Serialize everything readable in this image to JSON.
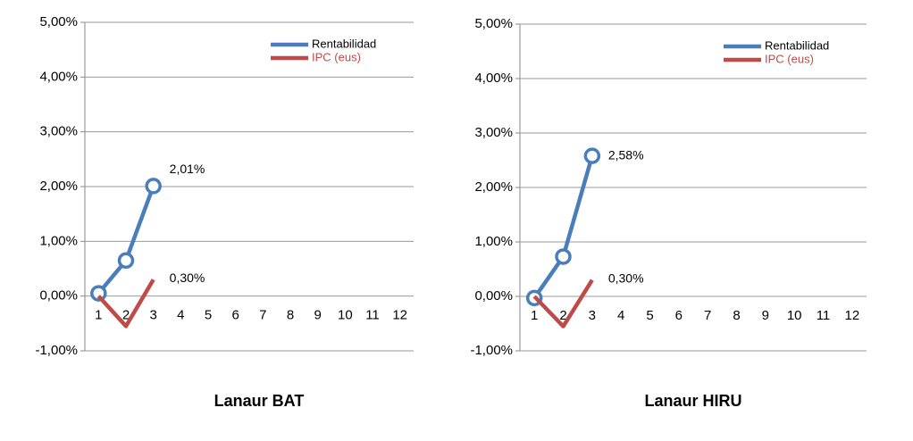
{
  "chart_data": [
    {
      "type": "line",
      "title": "Lanaur BAT",
      "categories": [
        "1",
        "2",
        "3",
        "4",
        "5",
        "6",
        "7",
        "8",
        "9",
        "10",
        "11",
        "12"
      ],
      "series": [
        {
          "name": "Rentabilidad",
          "color": "#4a7ebb",
          "values": [
            0.05,
            0.65,
            2.01,
            null,
            null,
            null,
            null,
            null,
            null,
            null,
            null,
            null
          ],
          "value_labels": [
            null,
            null,
            "2,01%",
            null,
            null,
            null,
            null,
            null,
            null,
            null,
            null,
            null
          ]
        },
        {
          "name": "IPC (eus)",
          "color": "#be4b48",
          "values": [
            0,
            -0.55,
            0.3,
            null,
            null,
            null,
            null,
            null,
            null,
            null,
            null,
            null
          ],
          "value_labels": [
            null,
            null,
            "0,30%",
            null,
            null,
            null,
            null,
            null,
            null,
            null,
            null,
            null
          ]
        }
      ],
      "ylim": [
        -1,
        5
      ],
      "yticks": [
        {
          "value": -1,
          "label": "-1,00%"
        },
        {
          "value": 0,
          "label": "0,00%"
        },
        {
          "value": 1,
          "label": "1,00%"
        },
        {
          "value": 2,
          "label": "2,00%"
        },
        {
          "value": 3,
          "label": "3,00%"
        },
        {
          "value": 4,
          "label": "4,00%"
        },
        {
          "value": 5,
          "label": "5,00%"
        }
      ],
      "grid": true,
      "legend": "upper right"
    },
    {
      "type": "line",
      "title": "Lanaur HIRU",
      "categories": [
        "1",
        "2",
        "3",
        "4",
        "5",
        "6",
        "7",
        "8",
        "9",
        "10",
        "11",
        "12"
      ],
      "series": [
        {
          "name": "Rentabilidad",
          "color": "#4a7ebb",
          "values": [
            -0.03,
            0.73,
            2.58,
            null,
            null,
            null,
            null,
            null,
            null,
            null,
            null,
            null
          ],
          "value_labels": [
            null,
            null,
            "2,58%",
            null,
            null,
            null,
            null,
            null,
            null,
            null,
            null,
            null
          ]
        },
        {
          "name": "IPC (eus)",
          "color": "#be4b48",
          "values": [
            0,
            -0.55,
            0.3,
            null,
            null,
            null,
            null,
            null,
            null,
            null,
            null,
            null
          ],
          "value_labels": [
            null,
            null,
            "0,30%",
            null,
            null,
            null,
            null,
            null,
            null,
            null,
            null,
            null
          ]
        }
      ],
      "ylim": [
        -1,
        5
      ],
      "yticks": [
        {
          "value": -1,
          "label": "-1,00%"
        },
        {
          "value": 0,
          "label": "0,00%"
        },
        {
          "value": 1,
          "label": "1,00%"
        },
        {
          "value": 2,
          "label": "2,00%"
        },
        {
          "value": 3,
          "label": "3,00%"
        },
        {
          "value": 4,
          "label": "4,00%"
        },
        {
          "value": 5,
          "label": "5,00%"
        }
      ],
      "grid": true,
      "legend": "upper right"
    }
  ]
}
